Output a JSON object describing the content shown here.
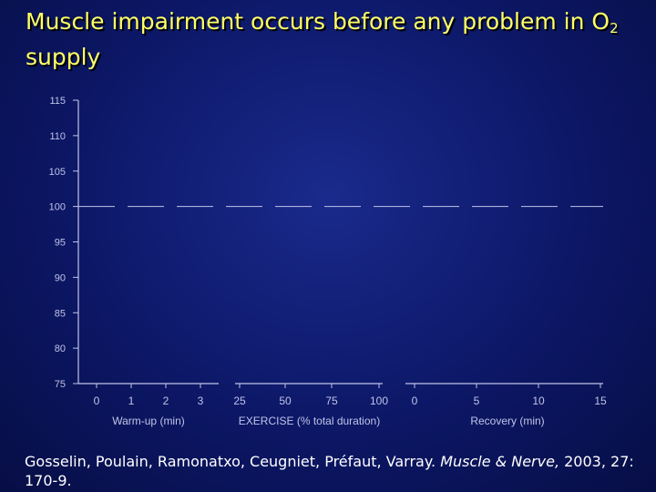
{
  "slide": {
    "title_main": "Muscle impairment occurs before any problem in O",
    "title_sub": "2",
    "title_end": " supply",
    "citation_authors": "Gosselin, Poulain, Ramonatxo, Ceugniet, Préfaut, Varray. ",
    "citation_journal": "Muscle & Nerve,",
    "citation_rest": " 2003, 27: 170-9."
  },
  "colors": {
    "background": "#0c1766",
    "title": "#ffff66",
    "axis": "#c0c4e8",
    "ticklabel": "#c0c4e8",
    "reference_line": "#c0c4e8"
  },
  "chart_data": {
    "type": "line",
    "ylim": [
      75,
      115
    ],
    "yticks": [
      75,
      80,
      85,
      90,
      95,
      100,
      105,
      110,
      115
    ],
    "reference_line": 100,
    "x_groups": [
      {
        "label": "Warm-up (min)",
        "ticks": [
          "0",
          "1",
          "2",
          "3"
        ]
      },
      {
        "label": "EXERCISE (% total duration)",
        "ticks": [
          "25",
          "50",
          "75",
          "100"
        ]
      },
      {
        "label": "Recovery (min)",
        "ticks": [
          "0",
          "5",
          "10",
          "15"
        ]
      }
    ],
    "series": [],
    "grid": false
  }
}
